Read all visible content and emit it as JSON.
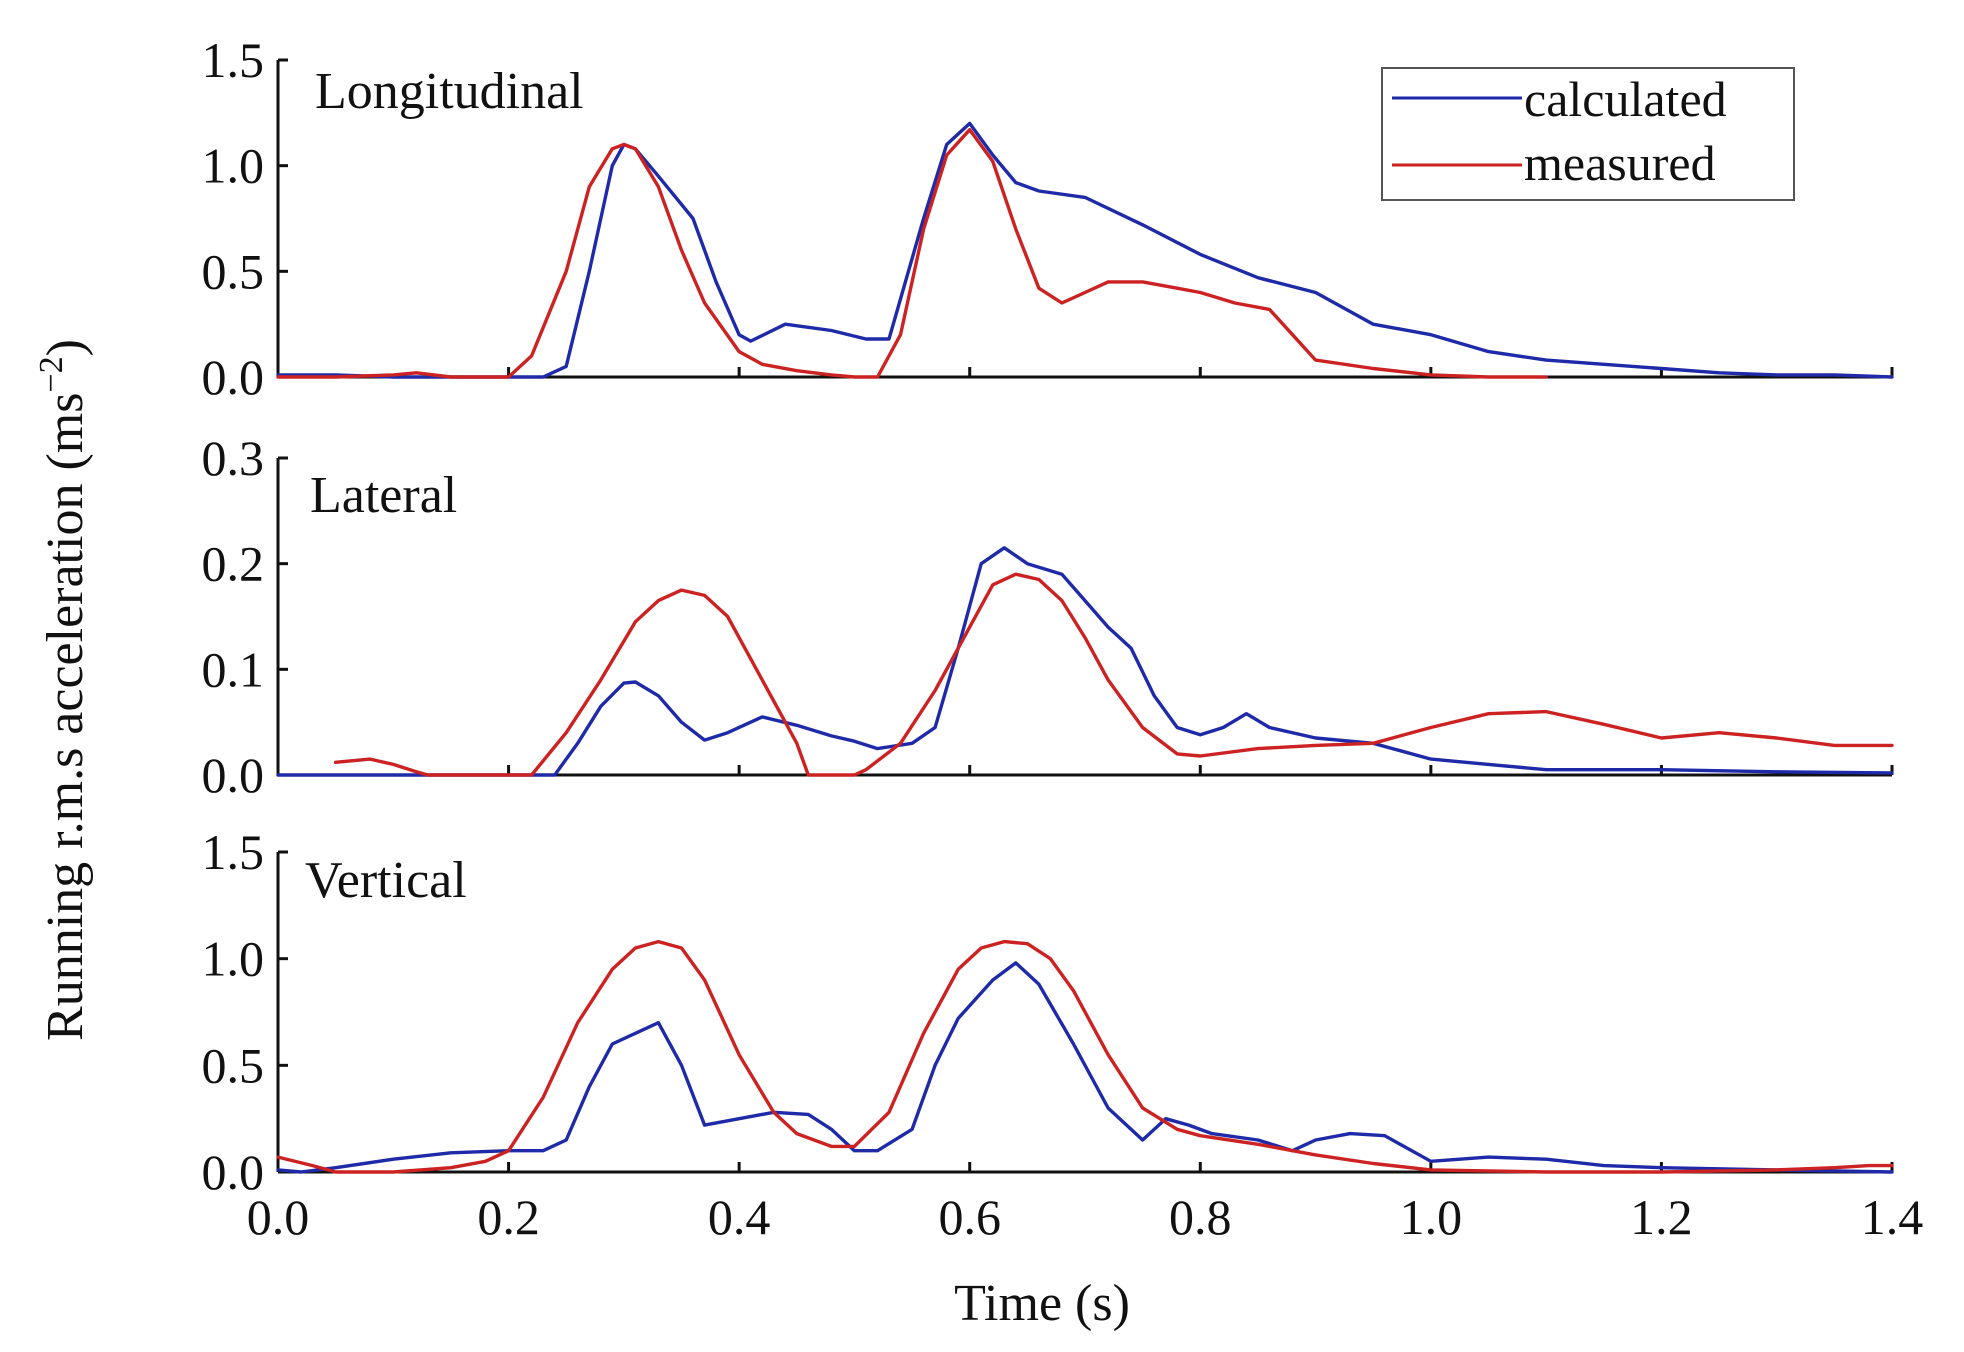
{
  "chart_data": {
    "type": "line",
    "ylabel": "Running r.m.s acceleration (ms",
    "ylabel_sup": "−2",
    "ylabel_close": ")",
    "xlabel": "Time (s)",
    "xlim": [
      0.0,
      1.4
    ],
    "xticks": [
      0.0,
      0.2,
      0.4,
      0.6,
      0.8,
      1.0,
      1.2,
      1.4
    ],
    "xtick_labels": [
      "0.0",
      "0.2",
      "0.4",
      "0.6",
      "0.8",
      "1.0",
      "1.2",
      "1.4"
    ],
    "legend": {
      "position": "top-right",
      "entries": [
        {
          "name": "calculated",
          "color": "#1f2aa8"
        },
        {
          "name": "measured",
          "color": "#cc2222"
        }
      ]
    },
    "panels": [
      {
        "label": "Longitudinal",
        "ylim": [
          0.0,
          1.5
        ],
        "yticks": [
          0.0,
          0.5,
          1.0,
          1.5
        ],
        "ytick_labels": [
          "0.0",
          "0.5",
          "1.0",
          "1.5"
        ],
        "series": [
          {
            "name": "calculated",
            "x": [
              0,
              0.05,
              0.1,
              0.15,
              0.2,
              0.23,
              0.25,
              0.27,
              0.29,
              0.3,
              0.31,
              0.33,
              0.36,
              0.38,
              0.4,
              0.41,
              0.44,
              0.48,
              0.51,
              0.53,
              0.56,
              0.58,
              0.6,
              0.62,
              0.64,
              0.66,
              0.7,
              0.75,
              0.8,
              0.85,
              0.9,
              0.95,
              1.0,
              1.05,
              1.1,
              1.15,
              1.2,
              1.25,
              1.3,
              1.35,
              1.4
            ],
            "y": [
              0.01,
              0.01,
              0.0,
              0.0,
              0.0,
              0.0,
              0.05,
              0.5,
              1.0,
              1.1,
              1.08,
              0.95,
              0.75,
              0.45,
              0.2,
              0.17,
              0.25,
              0.22,
              0.18,
              0.18,
              0.75,
              1.1,
              1.2,
              1.05,
              0.92,
              0.88,
              0.85,
              0.72,
              0.58,
              0.47,
              0.4,
              0.25,
              0.2,
              0.12,
              0.08,
              0.06,
              0.04,
              0.02,
              0.01,
              0.01,
              0.0
            ]
          },
          {
            "name": "measured",
            "x": [
              0,
              0.05,
              0.1,
              0.12,
              0.15,
              0.2,
              0.22,
              0.25,
              0.27,
              0.29,
              0.3,
              0.31,
              0.33,
              0.35,
              0.37,
              0.4,
              0.42,
              0.45,
              0.48,
              0.5,
              0.52,
              0.54,
              0.56,
              0.58,
              0.6,
              0.62,
              0.64,
              0.66,
              0.68,
              0.7,
              0.72,
              0.75,
              0.78,
              0.8,
              0.83,
              0.86,
              0.88,
              0.9,
              0.95,
              1.0,
              1.05,
              1.1
            ],
            "y": [
              0.0,
              0.0,
              0.01,
              0.02,
              0.0,
              0.0,
              0.1,
              0.5,
              0.9,
              1.08,
              1.1,
              1.08,
              0.9,
              0.6,
              0.35,
              0.12,
              0.06,
              0.03,
              0.01,
              0.0,
              0.0,
              0.2,
              0.7,
              1.05,
              1.17,
              1.02,
              0.7,
              0.42,
              0.35,
              0.4,
              0.45,
              0.45,
              0.42,
              0.4,
              0.35,
              0.32,
              0.2,
              0.08,
              0.04,
              0.01,
              0.0,
              0.0
            ]
          }
        ]
      },
      {
        "label": "Lateral",
        "ylim": [
          0.0,
          0.3
        ],
        "yticks": [
          0.0,
          0.1,
          0.2,
          0.3
        ],
        "ytick_labels": [
          "0.0",
          "0.1",
          "0.2",
          "0.3"
        ],
        "series": [
          {
            "name": "calculated",
            "x": [
              0,
              0.1,
              0.2,
              0.24,
              0.26,
              0.28,
              0.3,
              0.31,
              0.33,
              0.35,
              0.37,
              0.39,
              0.42,
              0.45,
              0.48,
              0.5,
              0.52,
              0.55,
              0.57,
              0.59,
              0.61,
              0.63,
              0.65,
              0.68,
              0.7,
              0.72,
              0.74,
              0.76,
              0.78,
              0.8,
              0.82,
              0.84,
              0.86,
              0.9,
              0.95,
              1.0,
              1.05,
              1.1,
              1.15,
              1.2,
              1.3,
              1.4
            ],
            "y": [
              0.0,
              0.0,
              0.0,
              0.0,
              0.03,
              0.065,
              0.087,
              0.088,
              0.075,
              0.05,
              0.033,
              0.04,
              0.055,
              0.047,
              0.037,
              0.032,
              0.025,
              0.03,
              0.045,
              0.12,
              0.2,
              0.215,
              0.2,
              0.19,
              0.165,
              0.14,
              0.12,
              0.075,
              0.045,
              0.038,
              0.045,
              0.058,
              0.045,
              0.035,
              0.03,
              0.015,
              0.01,
              0.005,
              0.005,
              0.005,
              0.003,
              0.002
            ]
          },
          {
            "name": "measured",
            "x": [
              0.05,
              0.08,
              0.1,
              0.12,
              0.13,
              0.2,
              0.22,
              0.25,
              0.28,
              0.31,
              0.33,
              0.35,
              0.37,
              0.39,
              0.41,
              0.43,
              0.45,
              0.46,
              0.5,
              0.51,
              0.54,
              0.57,
              0.6,
              0.62,
              0.64,
              0.66,
              0.68,
              0.7,
              0.72,
              0.75,
              0.78,
              0.8,
              0.85,
              0.9,
              0.95,
              1.0,
              1.05,
              1.1,
              1.15,
              1.2,
              1.25,
              1.3,
              1.35,
              1.4
            ],
            "y": [
              0.012,
              0.015,
              0.01,
              0.003,
              0.0,
              0.0,
              0.0,
              0.04,
              0.09,
              0.145,
              0.165,
              0.175,
              0.17,
              0.15,
              0.11,
              0.07,
              0.03,
              0.0,
              0.0,
              0.005,
              0.03,
              0.08,
              0.14,
              0.18,
              0.19,
              0.185,
              0.165,
              0.13,
              0.09,
              0.045,
              0.02,
              0.018,
              0.025,
              0.028,
              0.03,
              0.045,
              0.058,
              0.06,
              0.048,
              0.035,
              0.04,
              0.035,
              0.028,
              0.028
            ]
          }
        ]
      },
      {
        "label": "Vertical",
        "ylim": [
          0.0,
          1.5
        ],
        "yticks": [
          0.0,
          0.5,
          1.0,
          1.5
        ],
        "ytick_labels": [
          "0.0",
          "0.5",
          "1.0",
          "1.5"
        ],
        "series": [
          {
            "name": "calculated",
            "x": [
              0,
              0.02,
              0.05,
              0.1,
              0.15,
              0.2,
              0.23,
              0.25,
              0.27,
              0.29,
              0.31,
              0.33,
              0.35,
              0.37,
              0.4,
              0.43,
              0.46,
              0.48,
              0.5,
              0.52,
              0.55,
              0.57,
              0.59,
              0.62,
              0.64,
              0.66,
              0.69,
              0.72,
              0.75,
              0.77,
              0.79,
              0.81,
              0.85,
              0.88,
              0.9,
              0.93,
              0.96,
              1.0,
              1.05,
              1.1,
              1.15,
              1.2,
              1.3,
              1.4
            ],
            "y": [
              0.01,
              0.0,
              0.02,
              0.06,
              0.09,
              0.1,
              0.1,
              0.15,
              0.4,
              0.6,
              0.65,
              0.7,
              0.5,
              0.22,
              0.25,
              0.28,
              0.27,
              0.2,
              0.1,
              0.1,
              0.2,
              0.5,
              0.72,
              0.9,
              0.98,
              0.88,
              0.6,
              0.3,
              0.15,
              0.25,
              0.22,
              0.18,
              0.15,
              0.1,
              0.15,
              0.18,
              0.17,
              0.05,
              0.07,
              0.06,
              0.03,
              0.02,
              0.01,
              0.0
            ]
          },
          {
            "name": "measured",
            "x": [
              0,
              0.03,
              0.05,
              0.1,
              0.15,
              0.18,
              0.2,
              0.23,
              0.26,
              0.29,
              0.31,
              0.33,
              0.35,
              0.37,
              0.4,
              0.43,
              0.45,
              0.48,
              0.5,
              0.53,
              0.56,
              0.59,
              0.61,
              0.63,
              0.65,
              0.67,
              0.69,
              0.72,
              0.75,
              0.78,
              0.8,
              0.85,
              0.9,
              0.95,
              1.0,
              1.1,
              1.2,
              1.3,
              1.35,
              1.38,
              1.4
            ],
            "y": [
              0.07,
              0.03,
              0.0,
              0.0,
              0.02,
              0.05,
              0.1,
              0.35,
              0.7,
              0.95,
              1.05,
              1.08,
              1.05,
              0.9,
              0.55,
              0.28,
              0.18,
              0.12,
              0.12,
              0.28,
              0.65,
              0.95,
              1.05,
              1.08,
              1.07,
              1.0,
              0.85,
              0.55,
              0.3,
              0.2,
              0.17,
              0.13,
              0.08,
              0.04,
              0.01,
              0.0,
              0.0,
              0.01,
              0.02,
              0.03,
              0.03
            ]
          }
        ]
      }
    ]
  }
}
